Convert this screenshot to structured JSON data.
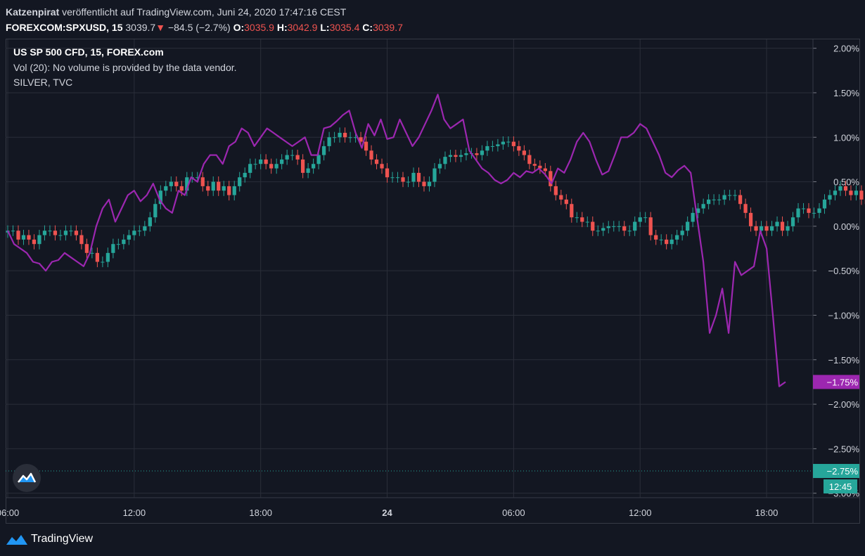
{
  "header": {
    "author": "Katzenpirat",
    "published": "veröffentlicht auf TradingView.com, Juni 24, 2020 17:47:16 CEST",
    "symbol": "FOREXCOM:SPXUSD, 15",
    "last": "3039.7",
    "down_arrow": "▼",
    "change": "−84.5 (−2.7%)",
    "o_label": "O:",
    "o_value": "3035.9",
    "h_label": "H:",
    "h_value": "3042.9",
    "l_label": "L:",
    "l_value": "3035.4",
    "c_label": "C:",
    "c_value": "3039.7"
  },
  "legend": {
    "title": "US SP 500 CFD, 15, FOREX.com",
    "volume": "Vol (20): No volume is provided by the data vendor.",
    "silver": "SILVER, TVC"
  },
  "footer": {
    "brand": "TradingView"
  },
  "colors": {
    "background": "#131722",
    "grid": "#2a2e39",
    "up": "#26a69a",
    "down": "#ef5350",
    "silver_line": "#9c27b0",
    "text": "#d1d4dc"
  },
  "chart_data": {
    "type": "line",
    "ylabel": "",
    "y_unit": "%",
    "ylim": [
      -3.05,
      2.1
    ],
    "y_ticks": [
      "2.00%",
      "1.50%",
      "1.00%",
      "0.50%",
      "0.00%",
      "−0.50%",
      "−1.00%",
      "−1.50%",
      "−2.00%",
      "−2.50%",
      "−3.00%"
    ],
    "x_ticks": [
      "06:00",
      "12:00",
      "18:00",
      "24",
      "06:00",
      "12:00",
      "18:00"
    ],
    "x_tick_positions_hours": [
      6,
      12,
      18,
      24,
      30,
      36,
      42
    ],
    "bold_tick": "24",
    "xlim_hours": [
      5.9,
      44.2
    ],
    "price_label_silver": "−1.75%",
    "price_label_spx": "−2.75%",
    "countdown": "12:45",
    "series": [
      {
        "name": "SILVER, TVC",
        "kind": "line",
        "x": [
          6.0,
          6.3,
          6.6,
          6.9,
          7.2,
          7.5,
          7.8,
          8.1,
          8.4,
          8.7,
          9.0,
          9.3,
          9.6,
          9.9,
          10.2,
          10.5,
          10.8,
          11.1,
          11.4,
          11.7,
          12.0,
          12.3,
          12.6,
          12.9,
          13.2,
          13.5,
          13.8,
          14.1,
          14.4,
          14.7,
          15.0,
          15.3,
          15.6,
          15.9,
          16.2,
          16.5,
          16.8,
          17.1,
          17.4,
          17.7,
          18.0,
          18.3,
          18.6,
          18.9,
          19.2,
          19.5,
          19.8,
          20.1,
          20.4,
          20.7,
          21.0,
          21.3,
          21.6,
          21.9,
          22.2,
          22.5,
          22.8,
          23.1,
          23.4,
          23.7,
          24.0,
          24.3,
          24.6,
          24.9,
          25.2,
          25.5,
          25.8,
          26.1,
          26.4,
          26.7,
          27.0,
          27.3,
          27.6,
          27.9,
          28.2,
          28.5,
          28.8,
          29.1,
          29.4,
          29.7,
          30.0,
          30.3,
          30.6,
          30.9,
          31.2,
          31.5,
          31.8,
          32.1,
          32.4,
          32.7,
          33.0,
          33.3,
          33.6,
          33.9,
          34.2,
          34.5,
          34.8,
          35.1,
          35.4,
          35.7,
          36.0,
          36.3,
          36.6,
          36.9,
          37.2,
          37.5,
          37.8,
          38.1,
          38.4,
          38.7,
          39.0,
          39.3,
          39.6,
          39.9,
          40.2,
          40.5,
          40.8,
          41.1,
          41.4,
          41.7,
          42.0,
          42.3,
          42.6,
          42.9
        ],
        "values": [
          -0.05,
          -0.2,
          -0.25,
          -0.3,
          -0.4,
          -0.42,
          -0.5,
          -0.4,
          -0.38,
          -0.3,
          -0.35,
          -0.4,
          -0.45,
          -0.3,
          0.0,
          0.2,
          0.3,
          0.05,
          0.2,
          0.35,
          0.4,
          0.28,
          0.35,
          0.48,
          0.3,
          0.2,
          0.15,
          0.4,
          0.35,
          0.55,
          0.5,
          0.7,
          0.8,
          0.8,
          0.7,
          0.9,
          0.95,
          1.1,
          1.05,
          0.9,
          1.0,
          1.1,
          1.05,
          1.0,
          0.95,
          0.9,
          0.95,
          1.0,
          0.8,
          0.8,
          1.1,
          1.12,
          1.18,
          1.25,
          1.3,
          1.05,
          0.88,
          1.15,
          1.02,
          1.2,
          0.98,
          1.0,
          1.2,
          1.05,
          0.9,
          1.0,
          1.15,
          1.3,
          1.48,
          1.2,
          1.1,
          1.15,
          1.2,
          0.85,
          0.75,
          0.65,
          0.6,
          0.52,
          0.48,
          0.52,
          0.6,
          0.55,
          0.62,
          0.6,
          0.65,
          0.58,
          0.48,
          0.65,
          0.6,
          0.75,
          0.95,
          1.05,
          0.95,
          0.75,
          0.58,
          0.62,
          0.8,
          1.0,
          1.0,
          1.05,
          1.15,
          1.1,
          0.95,
          0.8,
          0.6,
          0.55,
          0.63,
          0.68,
          0.6,
          0.1,
          -0.4,
          -1.2,
          -1.0,
          -0.7,
          -1.2,
          -0.4,
          -0.55,
          -0.5,
          -0.45,
          -0.05,
          -0.25,
          -1.0,
          -1.8,
          -1.75
        ]
      },
      {
        "name": "US SP 500 CFD, 15, FOREX.com",
        "kind": "candlestick",
        "step_hours": 0.25,
        "start_hour": 6.0,
        "close": [
          -0.05,
          -0.05,
          -0.15,
          -0.1,
          -0.15,
          -0.2,
          -0.1,
          -0.05,
          -0.05,
          -0.1,
          -0.1,
          -0.05,
          -0.05,
          -0.1,
          -0.2,
          -0.3,
          -0.3,
          -0.4,
          -0.4,
          -0.3,
          -0.2,
          -0.2,
          -0.15,
          -0.1,
          -0.05,
          -0.05,
          0.0,
          0.1,
          0.25,
          0.4,
          0.45,
          0.5,
          0.45,
          0.4,
          0.55,
          0.55,
          0.55,
          0.45,
          0.4,
          0.5,
          0.4,
          0.45,
          0.35,
          0.45,
          0.55,
          0.6,
          0.7,
          0.7,
          0.75,
          0.7,
          0.65,
          0.7,
          0.75,
          0.8,
          0.8,
          0.75,
          0.6,
          0.65,
          0.7,
          0.8,
          0.9,
          1.0,
          1.0,
          1.05,
          1.0,
          1.0,
          1.0,
          0.95,
          0.85,
          0.75,
          0.7,
          0.65,
          0.55,
          0.55,
          0.55,
          0.5,
          0.5,
          0.6,
          0.5,
          0.45,
          0.5,
          0.65,
          0.7,
          0.78,
          0.8,
          0.78,
          0.8,
          0.82,
          0.82,
          0.8,
          0.85,
          0.9,
          0.9,
          0.92,
          0.95,
          0.95,
          0.9,
          0.85,
          0.8,
          0.7,
          0.68,
          0.65,
          0.62,
          0.45,
          0.35,
          0.3,
          0.25,
          0.1,
          0.1,
          0.05,
          0.05,
          -0.05,
          -0.05,
          -0.02,
          0.0,
          0.0,
          0.0,
          -0.05,
          -0.05,
          0.05,
          0.1,
          0.1,
          -0.1,
          -0.15,
          -0.15,
          -0.2,
          -0.15,
          -0.1,
          -0.05,
          0.05,
          0.15,
          0.2,
          0.25,
          0.3,
          0.3,
          0.3,
          0.35,
          0.35,
          0.35,
          0.25,
          0.15,
          0.0,
          -0.05,
          0.0,
          -0.05,
          0.0,
          0.05,
          -0.05,
          0.0,
          0.1,
          0.2,
          0.2,
          0.15,
          0.15,
          0.2,
          0.3,
          0.35,
          0.4,
          0.45,
          0.4,
          0.35,
          0.4,
          0.3,
          0.25,
          0.2,
          0.3,
          0.25,
          0.2,
          0.1,
          0.05,
          0.15,
          0.2,
          0.25,
          0.3,
          0.28,
          0.2,
          0.1,
          -0.1,
          -0.3,
          -0.35,
          -0.6,
          -0.7,
          -0.7,
          -0.7,
          -0.6,
          -0.5,
          -0.55,
          -0.75,
          -0.9,
          -0.9,
          -0.85,
          -0.8,
          -0.75,
          -0.8,
          -0.75,
          -0.7,
          -0.65,
          -0.6,
          -0.55,
          -0.55,
          -0.5,
          -0.6,
          -0.6,
          -0.55,
          -0.45,
          -0.3,
          -0.4,
          -0.5,
          -0.45,
          -0.35,
          -0.45,
          -0.55,
          -0.75,
          -1.0,
          -1.2,
          -1.25,
          -1.1,
          -1.05,
          -0.95,
          -1.2,
          -1.5,
          -1.65,
          -1.7,
          -2.1,
          -2.2,
          -2.3,
          -2.9,
          -2.75
        ]
      }
    ]
  }
}
